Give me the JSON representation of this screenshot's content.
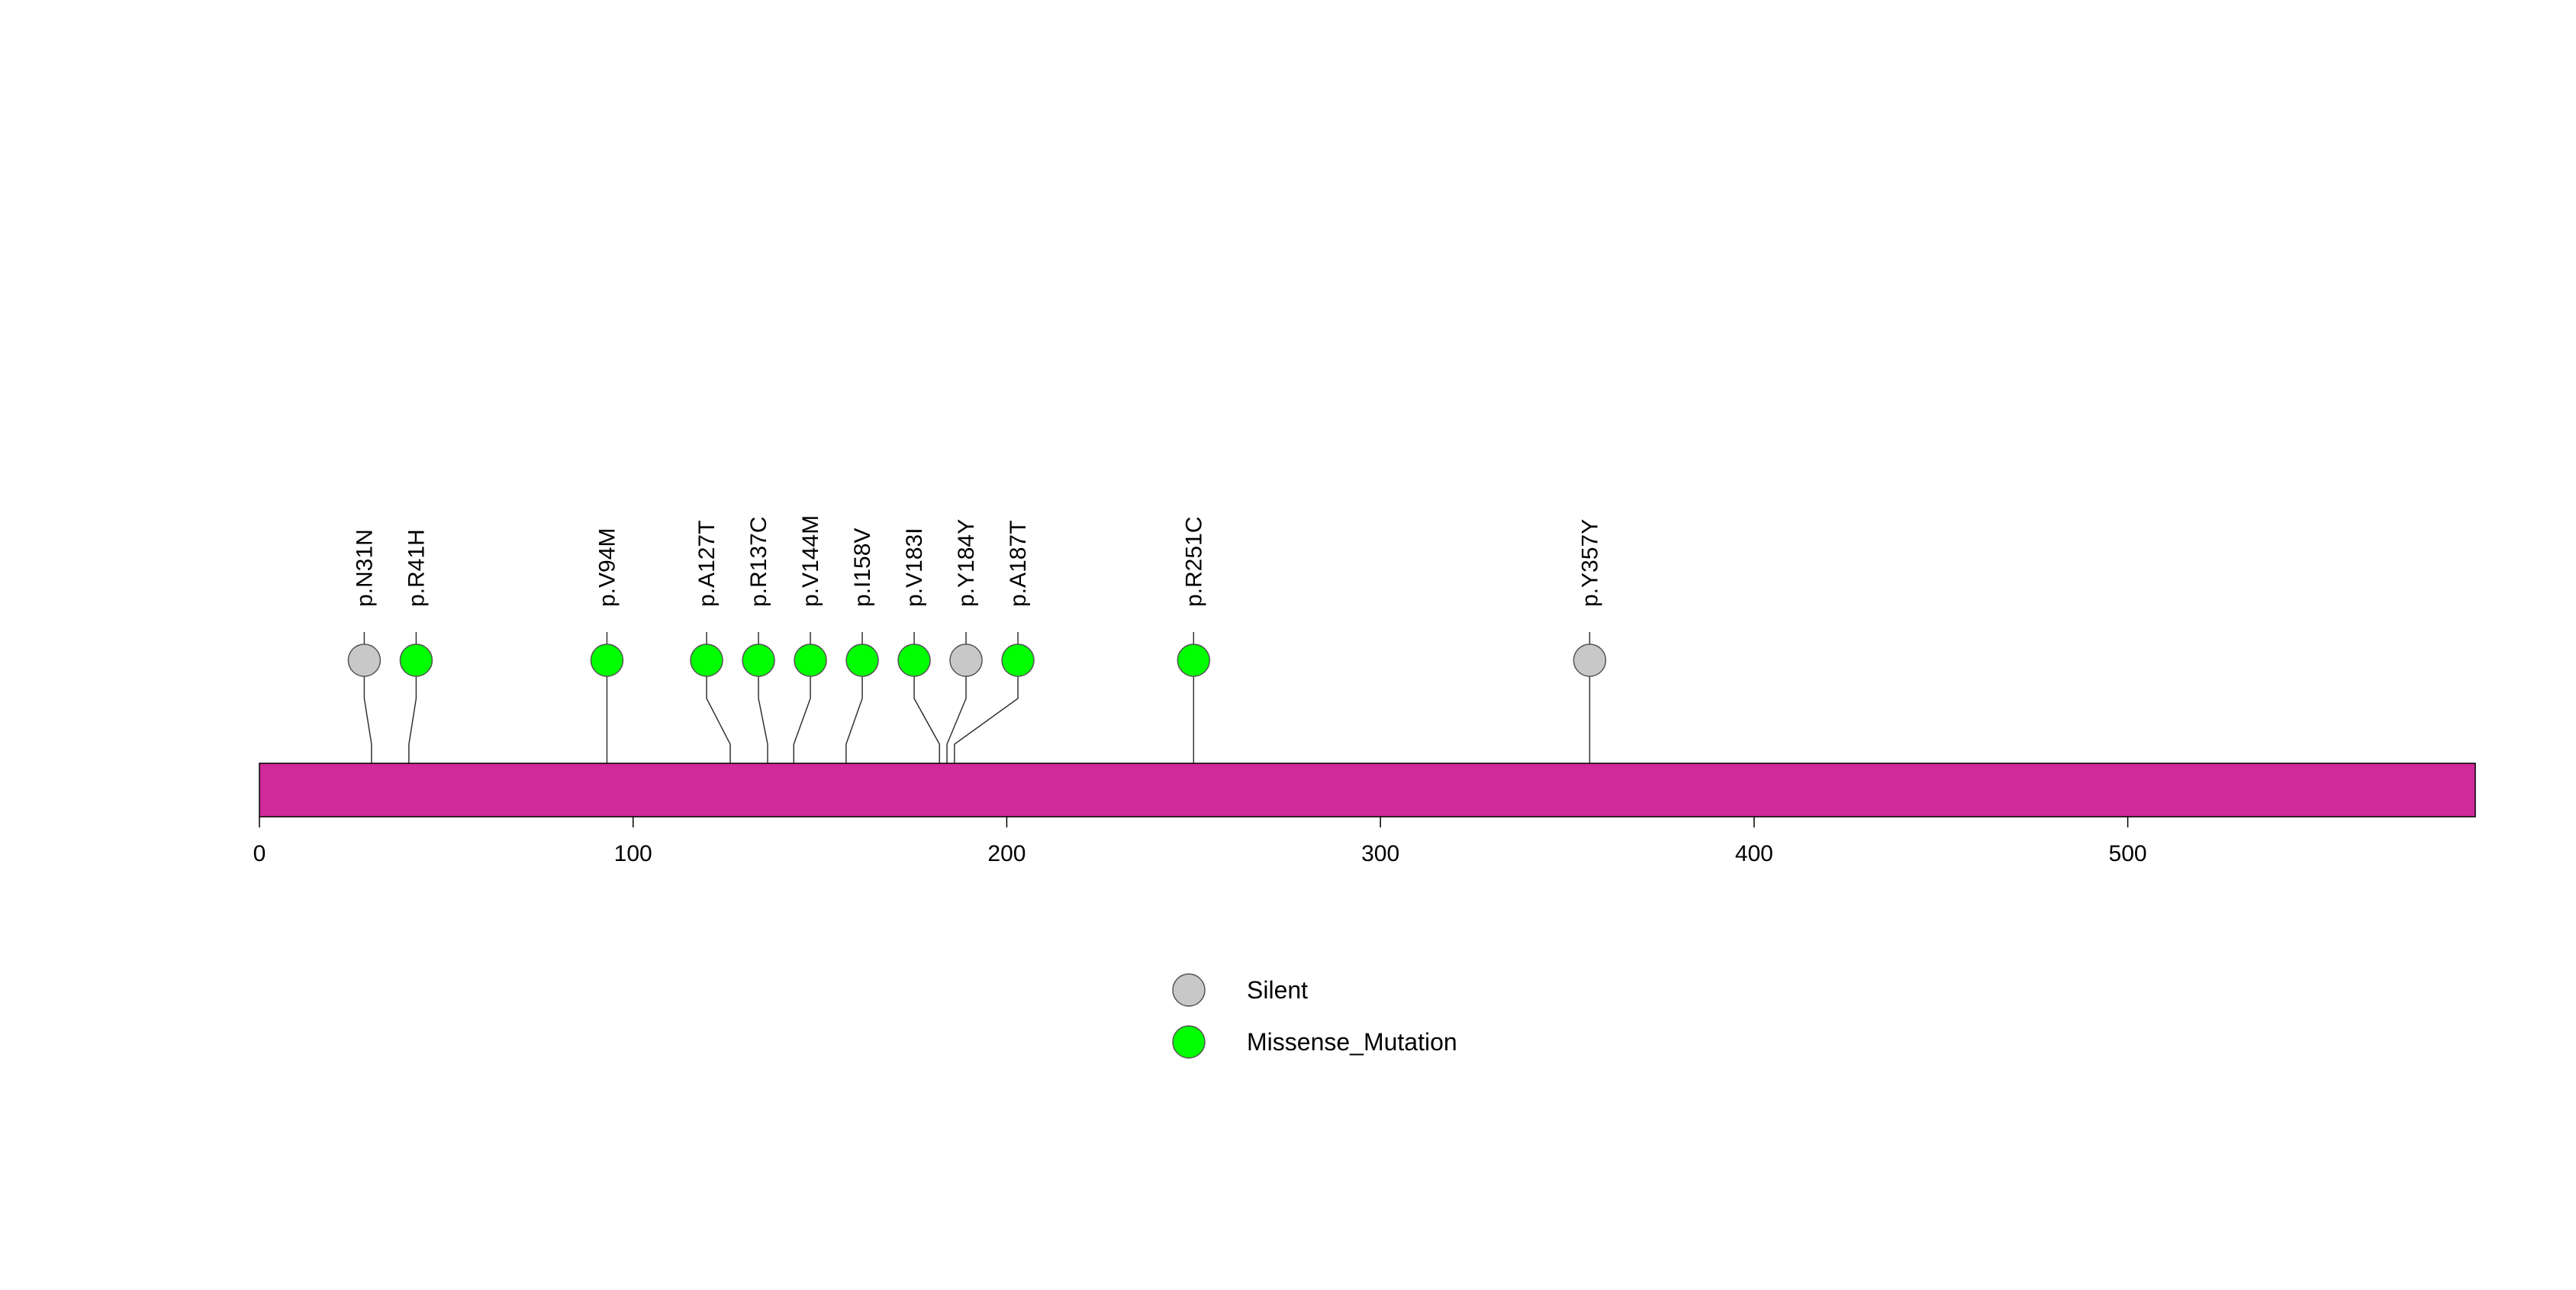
{
  "chart_data": {
    "type": "lollipop",
    "title": "",
    "xlabel": "",
    "ylabel": "",
    "xlim": [
      0,
      593
    ],
    "x_ticks": [
      0,
      100,
      200,
      300,
      400,
      500
    ],
    "x_tick_labels": [
      "0",
      "100",
      "200",
      "300",
      "400",
      "500"
    ],
    "protein_length": 593,
    "protein_color": "#D02A9B",
    "mutations": [
      {
        "label": "p.N31N",
        "position": 30,
        "type": "Silent"
      },
      {
        "label": "p.R41H",
        "position": 40,
        "type": "Missense_Mutation"
      },
      {
        "label": "p.V94M",
        "position": 93,
        "type": "Missense_Mutation"
      },
      {
        "label": "p.A127T",
        "position": 126,
        "type": "Missense_Mutation"
      },
      {
        "label": "p.R137C",
        "position": 136,
        "type": "Missense_Mutation"
      },
      {
        "label": "p.V144M",
        "position": 143,
        "type": "Missense_Mutation"
      },
      {
        "label": "p.I158V",
        "position": 157,
        "type": "Missense_Mutation"
      },
      {
        "label": "p.V183I",
        "position": 182,
        "type": "Missense_Mutation"
      },
      {
        "label": "p.Y184Y",
        "position": 184,
        "type": "Silent"
      },
      {
        "label": "p.A187T",
        "position": 186,
        "type": "Missense_Mutation"
      },
      {
        "label": "p.R251C",
        "position": 250,
        "type": "Missense_Mutation"
      },
      {
        "label": "p.Y357Y",
        "position": 356,
        "type": "Silent"
      }
    ],
    "legend": {
      "placement": "bottom-center",
      "entries": [
        {
          "name": "Silent",
          "color": "#C8C8C8"
        },
        {
          "name": "Missense_Mutation",
          "color": "#00FF00"
        }
      ]
    }
  }
}
